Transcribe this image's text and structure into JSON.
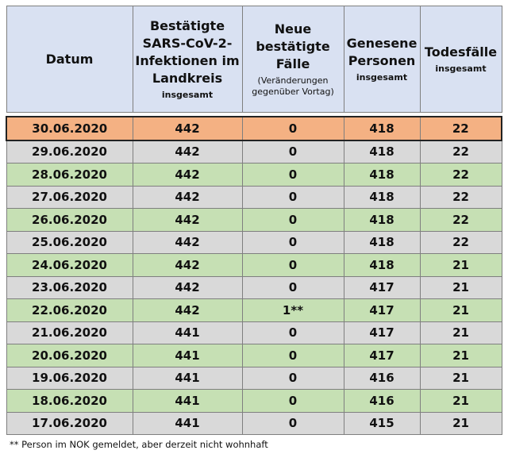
{
  "headers": {
    "datum": "Datum",
    "bestaetigt_main": "Bestätigte SARS-CoV-2-Infektionen im Landkreis",
    "bestaetigt_sub": "insgesamt",
    "neu_main": "Neue bestätigte Fälle",
    "neu_sub": "(Veränderungen gegenüber Vortag)",
    "genesen_main": "Genesene Personen",
    "genesen_sub": "insgesamt",
    "tod_main": "Todesfälle",
    "tod_sub": "insgesamt"
  },
  "rows": [
    {
      "datum": "30.06.2020",
      "bestaetigt": "442",
      "neu": "0",
      "genesen": "418",
      "tod": "22"
    },
    {
      "datum": "29.06.2020",
      "bestaetigt": "442",
      "neu": "0",
      "genesen": "418",
      "tod": "22"
    },
    {
      "datum": "28.06.2020",
      "bestaetigt": "442",
      "neu": "0",
      "genesen": "418",
      "tod": "22"
    },
    {
      "datum": "27.06.2020",
      "bestaetigt": "442",
      "neu": "0",
      "genesen": "418",
      "tod": "22"
    },
    {
      "datum": "26.06.2020",
      "bestaetigt": "442",
      "neu": "0",
      "genesen": "418",
      "tod": "22"
    },
    {
      "datum": "25.06.2020",
      "bestaetigt": "442",
      "neu": "0",
      "genesen": "418",
      "tod": "22"
    },
    {
      "datum": "24.06.2020",
      "bestaetigt": "442",
      "neu": "0",
      "genesen": "418",
      "tod": "21"
    },
    {
      "datum": "23.06.2020",
      "bestaetigt": "442",
      "neu": "0",
      "genesen": "417",
      "tod": "21"
    },
    {
      "datum": "22.06.2020",
      "bestaetigt": "442",
      "neu": "1**",
      "genesen": "417",
      "tod": "21"
    },
    {
      "datum": "21.06.2020",
      "bestaetigt": "441",
      "neu": "0",
      "genesen": "417",
      "tod": "21"
    },
    {
      "datum": "20.06.2020",
      "bestaetigt": "441",
      "neu": "0",
      "genesen": "417",
      "tod": "21"
    },
    {
      "datum": "19.06.2020",
      "bestaetigt": "441",
      "neu": "0",
      "genesen": "416",
      "tod": "21"
    },
    {
      "datum": "18.06.2020",
      "bestaetigt": "441",
      "neu": "0",
      "genesen": "416",
      "tod": "21"
    },
    {
      "datum": "17.06.2020",
      "bestaetigt": "441",
      "neu": "0",
      "genesen": "415",
      "tod": "21"
    }
  ],
  "footnote": "** Person im NOK gemeldet, aber derzeit nicht wohnhaft",
  "colors": {
    "header": "#d9e1f2",
    "highlight": "#f4b183",
    "gray_row": "#d9d9d9",
    "green_row": "#c6e0b4"
  }
}
